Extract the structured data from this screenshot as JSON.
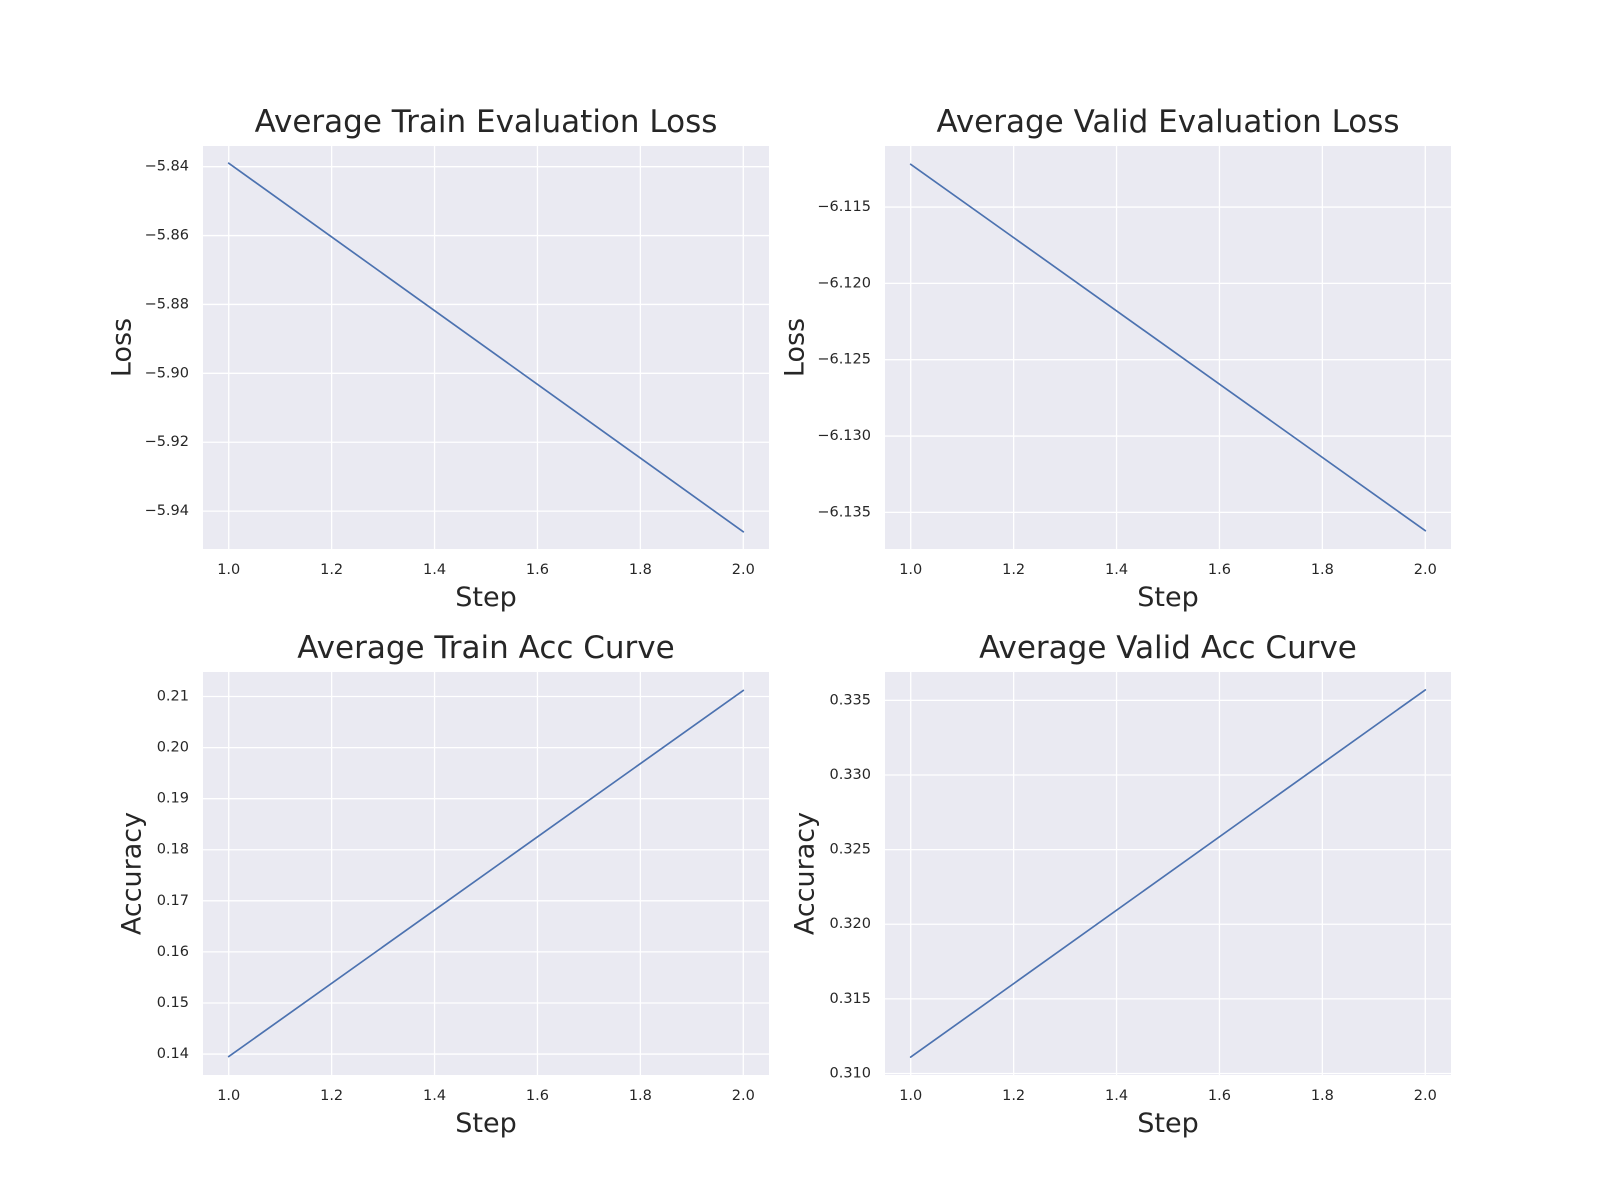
{
  "style": {
    "background": "#ffffff",
    "plot_background": "#eaeaf2",
    "grid_color": "#ffffff",
    "line_color": "#4c72b0",
    "text_color": "#262626"
  },
  "chart_data": [
    {
      "type": "line",
      "title": "Average Train Evaluation Loss",
      "xlabel": "Step",
      "ylabel": "Loss",
      "grid": true,
      "x": [
        1.0,
        2.0
      ],
      "series": [
        {
          "values": [
            -5.839,
            -5.946
          ]
        }
      ],
      "xlim": [
        0.95,
        2.05
      ],
      "ylim": [
        -5.951,
        -5.834
      ],
      "xticks": [
        1.0,
        1.2,
        1.4,
        1.6,
        1.8,
        2.0
      ],
      "xtick_labels": [
        "1.0",
        "1.2",
        "1.4",
        "1.6",
        "1.8",
        "2.0"
      ],
      "yticks": [
        -5.84,
        -5.86,
        -5.88,
        -5.9,
        -5.92,
        -5.94
      ],
      "ytick_labels": [
        "−5.84",
        "−5.86",
        "−5.88",
        "−5.90",
        "−5.92",
        "−5.94"
      ]
    },
    {
      "type": "line",
      "title": "Average Valid Evaluation Loss",
      "xlabel": "Step",
      "ylabel": "Loss",
      "grid": true,
      "x": [
        1.0,
        2.0
      ],
      "series": [
        {
          "values": [
            -6.1122,
            -6.1362
          ]
        }
      ],
      "xlim": [
        0.95,
        2.05
      ],
      "ylim": [
        -6.1374,
        -6.111
      ],
      "xticks": [
        1.0,
        1.2,
        1.4,
        1.6,
        1.8,
        2.0
      ],
      "xtick_labels": [
        "1.0",
        "1.2",
        "1.4",
        "1.6",
        "1.8",
        "2.0"
      ],
      "yticks": [
        -6.115,
        -6.12,
        -6.125,
        -6.13,
        -6.135
      ],
      "ytick_labels": [
        "−6.115",
        "−6.120",
        "−6.125",
        "−6.130",
        "−6.135"
      ]
    },
    {
      "type": "line",
      "title": "Average Train Acc Curve",
      "xlabel": "Step",
      "ylabel": "Accuracy",
      "grid": true,
      "x": [
        1.0,
        2.0
      ],
      "series": [
        {
          "values": [
            0.1395,
            0.2112
          ]
        }
      ],
      "xlim": [
        0.95,
        2.05
      ],
      "ylim": [
        0.1359,
        0.2148
      ],
      "xticks": [
        1.0,
        1.2,
        1.4,
        1.6,
        1.8,
        2.0
      ],
      "xtick_labels": [
        "1.0",
        "1.2",
        "1.4",
        "1.6",
        "1.8",
        "2.0"
      ],
      "yticks": [
        0.14,
        0.15,
        0.16,
        0.17,
        0.18,
        0.19,
        0.2,
        0.21
      ],
      "ytick_labels": [
        "0.14",
        "0.15",
        "0.16",
        "0.17",
        "0.18",
        "0.19",
        "0.20",
        "0.21"
      ]
    },
    {
      "type": "line",
      "title": "Average Valid Acc Curve",
      "xlabel": "Step",
      "ylabel": "Accuracy",
      "grid": true,
      "x": [
        1.0,
        2.0
      ],
      "series": [
        {
          "values": [
            0.3111,
            0.3357
          ]
        }
      ],
      "xlim": [
        0.95,
        2.05
      ],
      "ylim": [
        0.3099,
        0.3369
      ],
      "xticks": [
        1.0,
        1.2,
        1.4,
        1.6,
        1.8,
        2.0
      ],
      "xtick_labels": [
        "1.0",
        "1.2",
        "1.4",
        "1.6",
        "1.8",
        "2.0"
      ],
      "yticks": [
        0.31,
        0.315,
        0.32,
        0.325,
        0.33,
        0.335
      ],
      "ytick_labels": [
        "0.310",
        "0.315",
        "0.320",
        "0.325",
        "0.330",
        "0.335"
      ]
    }
  ]
}
